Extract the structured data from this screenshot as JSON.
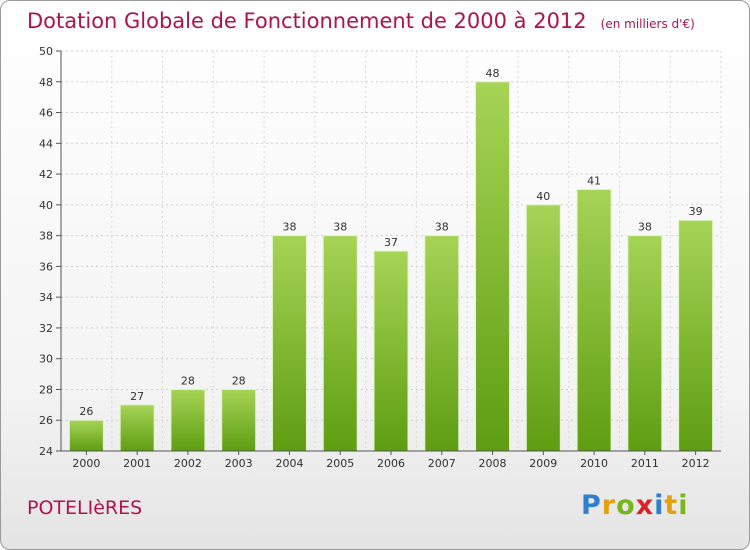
{
  "header": {
    "title": "Dotation Globale de Fonctionnement de 2000 à 2012",
    "unit": "(en milliers d'€)"
  },
  "footer": {
    "commune": "POTELIèRES",
    "logo": [
      "P",
      "r",
      "o",
      "x",
      "i",
      "t",
      "i"
    ]
  },
  "colors": {
    "title": "#b0124f",
    "bar_light": "#a6d456",
    "bar_dark": "#5e9d12",
    "logo": [
      "#2e7fd0",
      "#e4a10b",
      "#7ab51d",
      "#d9232a",
      "#2e7fd0",
      "#e4a10b",
      "#7ab51d"
    ]
  },
  "chart_data": {
    "type": "bar",
    "title": "Dotation Globale de Fonctionnement de 2000 à 2012",
    "categories": [
      "2000",
      "2001",
      "2002",
      "2003",
      "2004",
      "2005",
      "2006",
      "2007",
      "2008",
      "2009",
      "2010",
      "2011",
      "2012"
    ],
    "values": [
      26,
      27,
      28,
      28,
      38,
      38,
      37,
      38,
      48,
      40,
      41,
      38,
      39
    ],
    "value_labels": [
      "26",
      "27",
      "28",
      "28",
      "38",
      "38",
      "37",
      "38",
      "48",
      "40",
      "41",
      "38",
      "39"
    ],
    "ylim": [
      24,
      50
    ],
    "yticks": [
      "24",
      "26",
      "28",
      "30",
      "32",
      "34",
      "36",
      "38",
      "40",
      "42",
      "44",
      "46",
      "48",
      "50"
    ],
    "grid": true,
    "legend": "none"
  }
}
